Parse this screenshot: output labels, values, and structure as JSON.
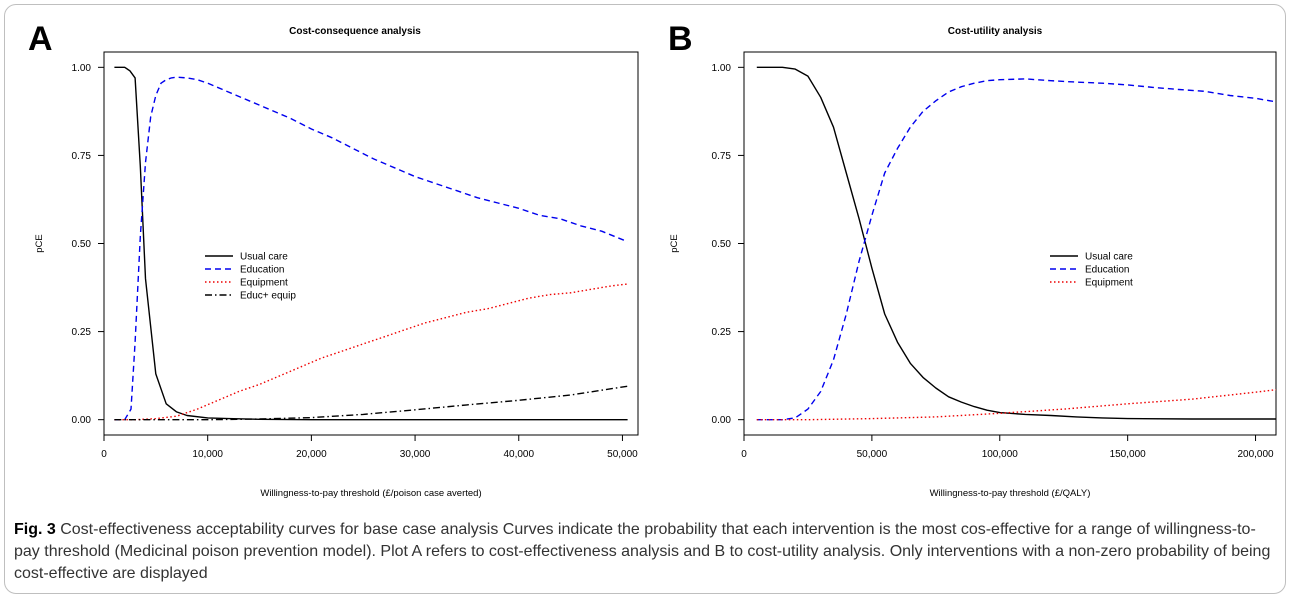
{
  "caption": {
    "figure_label": "Fig. 3",
    "text": " Cost-effectiveness acceptability curves for base case analysis Curves indicate the probability that each intervention is the most cos-effective for a range of willingness-to-pay threshold (Medicinal poison prevention model). Plot A refers to cost-effectiveness analysis and B to cost-utility analysis. Only interventions with a non-zero probability of being cost-effective are displayed"
  },
  "colors": {
    "usual_care": "#000000",
    "education": "#0000ee",
    "equipment": "#ee0000",
    "educ_equip": "#000000"
  },
  "chart_data": [
    {
      "panel": "A",
      "type": "line",
      "title": "Cost-consequence analysis",
      "xlabel": "Willingness-to-pay threshold (£/poison case averted)",
      "ylabel": "pCE",
      "xlim": [
        0,
        51500
      ],
      "ylim": [
        0,
        1
      ],
      "xticks": [
        0,
        10000,
        20000,
        30000,
        40000,
        50000
      ],
      "xtick_labels": [
        "0",
        "10,000",
        "20,000",
        "30,000",
        "40,000",
        "50,000"
      ],
      "yticks": [
        0,
        0.25,
        0.5,
        0.75,
        1
      ],
      "ytick_labels": [
        "0.00",
        "0.25",
        "0.50",
        "0.75",
        "1.00"
      ],
      "legend_position": "center-left",
      "series": [
        {
          "name": "Usual care",
          "color": "#000000",
          "dash": "solid",
          "x": [
            1000,
            2000,
            2500,
            3000,
            3500,
            4000,
            5000,
            6000,
            7000,
            8000,
            10000,
            12000,
            15000,
            20000,
            30000,
            40000,
            50500
          ],
          "y": [
            1.0,
            1.0,
            0.99,
            0.97,
            0.72,
            0.4,
            0.13,
            0.045,
            0.022,
            0.012,
            0.005,
            0.003,
            0.001,
            0.0,
            0.0,
            0.0,
            0.0
          ]
        },
        {
          "name": "Education",
          "color": "#0000ee",
          "dash": "dashed",
          "x": [
            1000,
            2000,
            2600,
            3000,
            3500,
            4000,
            4500,
            5000,
            5500,
            6000,
            6500,
            7000,
            8000,
            9000,
            10000,
            12000,
            14000,
            16000,
            18000,
            20000,
            22000,
            24000,
            26000,
            28000,
            30000,
            32000,
            34000,
            36000,
            38000,
            40000,
            42000,
            44000,
            46000,
            48000,
            50500
          ],
          "y": [
            0.0,
            0.0,
            0.03,
            0.22,
            0.52,
            0.73,
            0.86,
            0.92,
            0.955,
            0.965,
            0.97,
            0.972,
            0.97,
            0.965,
            0.955,
            0.93,
            0.905,
            0.88,
            0.855,
            0.825,
            0.8,
            0.77,
            0.74,
            0.715,
            0.69,
            0.67,
            0.65,
            0.63,
            0.615,
            0.6,
            0.58,
            0.57,
            0.55,
            0.535,
            0.505
          ]
        },
        {
          "name": "Equipment",
          "color": "#ee0000",
          "dash": "dotted",
          "x": [
            1000,
            3000,
            5000,
            7000,
            9000,
            11000,
            13000,
            15000,
            17000,
            19000,
            21000,
            23000,
            25000,
            27000,
            29000,
            31000,
            33000,
            35000,
            37000,
            39000,
            41000,
            43000,
            45000,
            47000,
            49000,
            50500
          ],
          "y": [
            0.0,
            0.0,
            0.003,
            0.01,
            0.03,
            0.055,
            0.08,
            0.1,
            0.125,
            0.15,
            0.175,
            0.195,
            0.215,
            0.235,
            0.255,
            0.275,
            0.29,
            0.305,
            0.315,
            0.33,
            0.345,
            0.355,
            0.36,
            0.37,
            0.38,
            0.385
          ]
        },
        {
          "name": "Educ+ equip",
          "color": "#000000",
          "dash": "dashdot",
          "x": [
            1000,
            5000,
            10000,
            15000,
            20000,
            25000,
            30000,
            35000,
            40000,
            45000,
            50500
          ],
          "y": [
            0.0,
            0.0,
            0.0,
            0.002,
            0.006,
            0.015,
            0.028,
            0.042,
            0.055,
            0.07,
            0.095
          ]
        }
      ]
    },
    {
      "panel": "B",
      "type": "line",
      "title": "Cost-utility analysis",
      "xlabel": "Willingness-to-pay threshold (£/QALY)",
      "ylabel": "pCE",
      "xlim": [
        0,
        208000
      ],
      "ylim": [
        0,
        1
      ],
      "xticks": [
        0,
        50000,
        100000,
        150000,
        200000
      ],
      "xtick_labels": [
        "0",
        "50,000",
        "100,000",
        "150,000",
        "200,000"
      ],
      "yticks": [
        0,
        0.25,
        0.5,
        0.75,
        1
      ],
      "ytick_labels": [
        "0.00",
        "0.25",
        "0.50",
        "0.75",
        "1.00"
      ],
      "legend_position": "center-right",
      "series": [
        {
          "name": "Usual care",
          "color": "#000000",
          "dash": "solid",
          "x": [
            5000,
            10000,
            15000,
            20000,
            25000,
            30000,
            35000,
            40000,
            45000,
            50000,
            55000,
            60000,
            65000,
            70000,
            75000,
            80000,
            85000,
            90000,
            95000,
            100000,
            110000,
            120000,
            130000,
            140000,
            150000,
            175000,
            208000
          ],
          "y": [
            1.0,
            1.0,
            1.0,
            0.995,
            0.975,
            0.915,
            0.83,
            0.7,
            0.57,
            0.43,
            0.3,
            0.22,
            0.16,
            0.12,
            0.09,
            0.065,
            0.05,
            0.037,
            0.027,
            0.02,
            0.015,
            0.012,
            0.008,
            0.005,
            0.003,
            0.002,
            0.002
          ]
        },
        {
          "name": "Education",
          "color": "#0000ee",
          "dash": "dashed",
          "x": [
            5000,
            15000,
            20000,
            25000,
            30000,
            35000,
            40000,
            45000,
            50000,
            55000,
            60000,
            65000,
            70000,
            75000,
            80000,
            85000,
            90000,
            95000,
            100000,
            110000,
            120000,
            130000,
            140000,
            150000,
            160000,
            170000,
            180000,
            190000,
            200000,
            208000
          ],
          "y": [
            0.0,
            0.0,
            0.005,
            0.03,
            0.08,
            0.17,
            0.3,
            0.45,
            0.58,
            0.7,
            0.77,
            0.83,
            0.875,
            0.905,
            0.93,
            0.945,
            0.955,
            0.962,
            0.965,
            0.967,
            0.962,
            0.958,
            0.955,
            0.95,
            0.943,
            0.937,
            0.932,
            0.92,
            0.912,
            0.902
          ]
        },
        {
          "name": "Equipment",
          "color": "#ee0000",
          "dash": "dotted",
          "x": [
            5000,
            25000,
            50000,
            75000,
            100000,
            125000,
            150000,
            175000,
            200000,
            208000
          ],
          "y": [
            0.0,
            0.0,
            0.003,
            0.008,
            0.018,
            0.03,
            0.045,
            0.058,
            0.078,
            0.085
          ]
        }
      ]
    }
  ]
}
